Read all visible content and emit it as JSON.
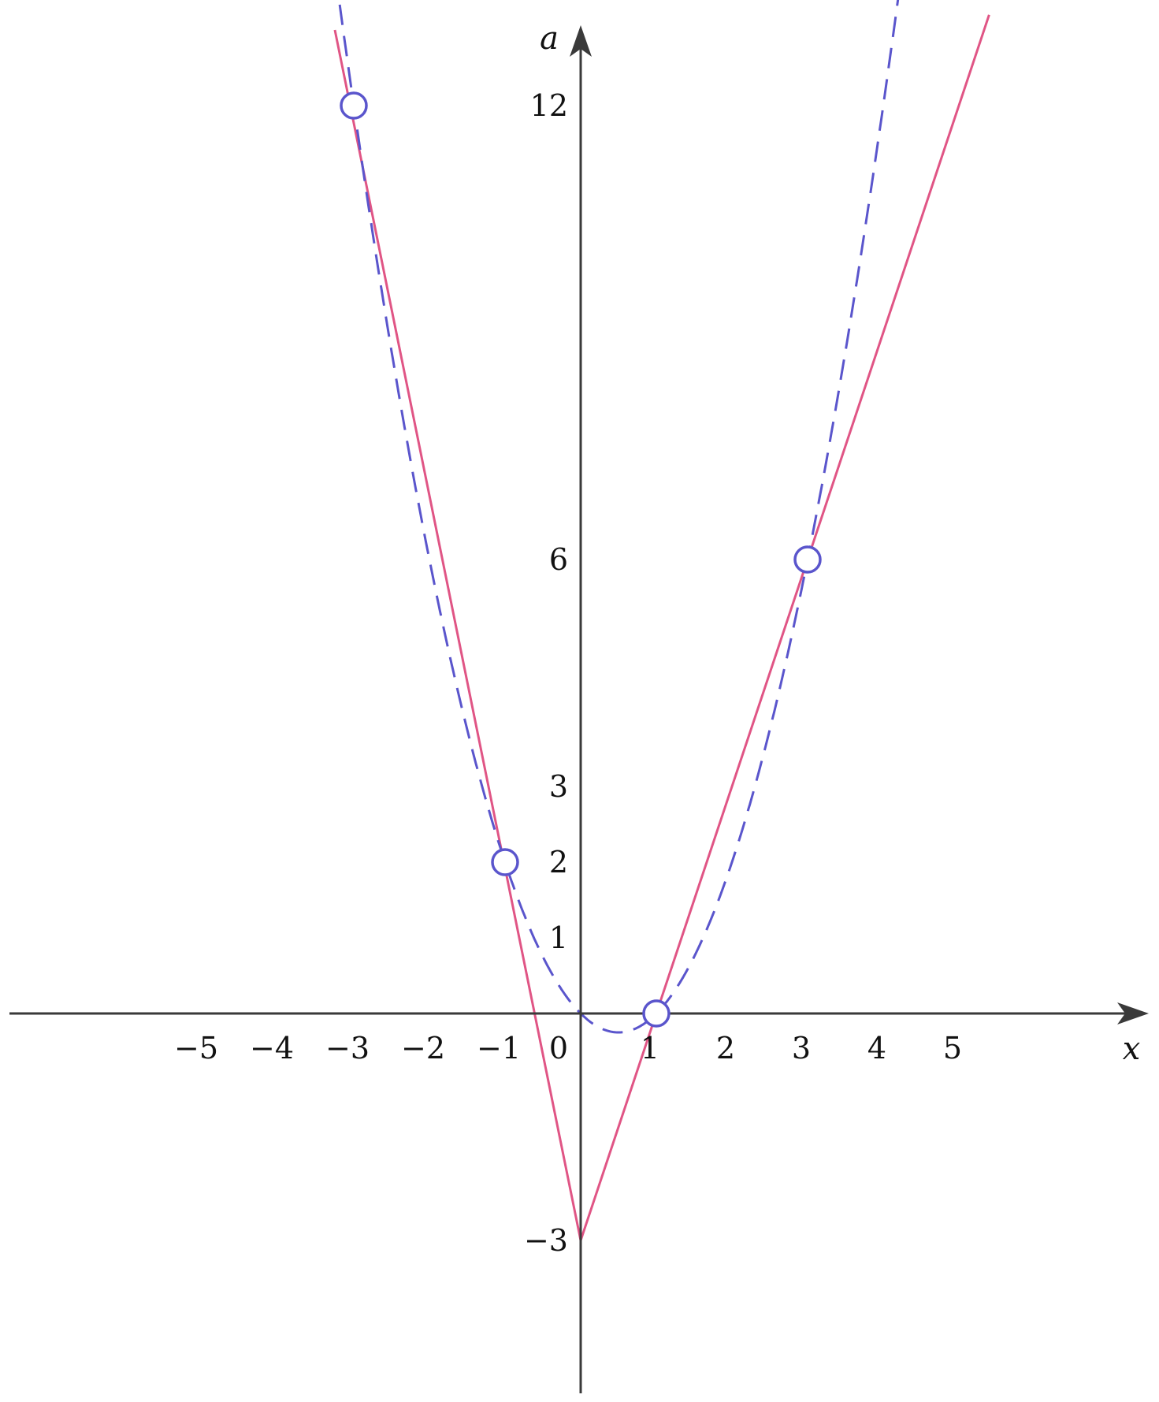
{
  "chart_data": {
    "type": "line",
    "title": "",
    "xlabel": "x",
    "ylabel": "a",
    "xlim": [
      -7.6,
      7.4
    ],
    "ylim": [
      -5.0,
      13.2
    ],
    "x_ticks": [
      {
        "value": -5,
        "label": "−5"
      },
      {
        "value": -4,
        "label": "−4"
      },
      {
        "value": -3,
        "label": "−3"
      },
      {
        "value": -2,
        "label": "−2"
      },
      {
        "value": -1,
        "label": "−1"
      },
      {
        "value": 1,
        "label": "1"
      },
      {
        "value": 2,
        "label": "2"
      },
      {
        "value": 3,
        "label": "3"
      },
      {
        "value": 4,
        "label": "4"
      },
      {
        "value": 5,
        "label": "5"
      }
    ],
    "origin_label": "0",
    "y_ticks": [
      {
        "value": 12,
        "label": "12"
      },
      {
        "value": 6,
        "label": "6"
      },
      {
        "value": 3,
        "label": "3"
      },
      {
        "value": 2,
        "label": "2"
      },
      {
        "value": 1,
        "label": "1"
      },
      {
        "value": -3,
        "label": "−3"
      }
    ],
    "grid": false,
    "legend": "none",
    "series": [
      {
        "style": "solid",
        "color": "#e05585",
        "x": [
          -3.25,
          0,
          5.4
        ],
        "y": [
          13.0,
          -3.0,
          13.2
        ]
      },
      {
        "style": "dashed",
        "color": "#5a55cc",
        "function": "x^2 - x",
        "x_range": [
          -3.35,
          4.2
        ]
      }
    ],
    "open_points": [
      {
        "x": -3,
        "y": 12
      },
      {
        "x": -1,
        "y": 2
      },
      {
        "x": 1,
        "y": 0
      },
      {
        "x": 3,
        "y": 6
      }
    ],
    "colors": {
      "axis": "#3a3a3a",
      "solid_line": "#e05585",
      "dashed_curve": "#5a55cc",
      "point_fill": "#ffffff"
    }
  }
}
